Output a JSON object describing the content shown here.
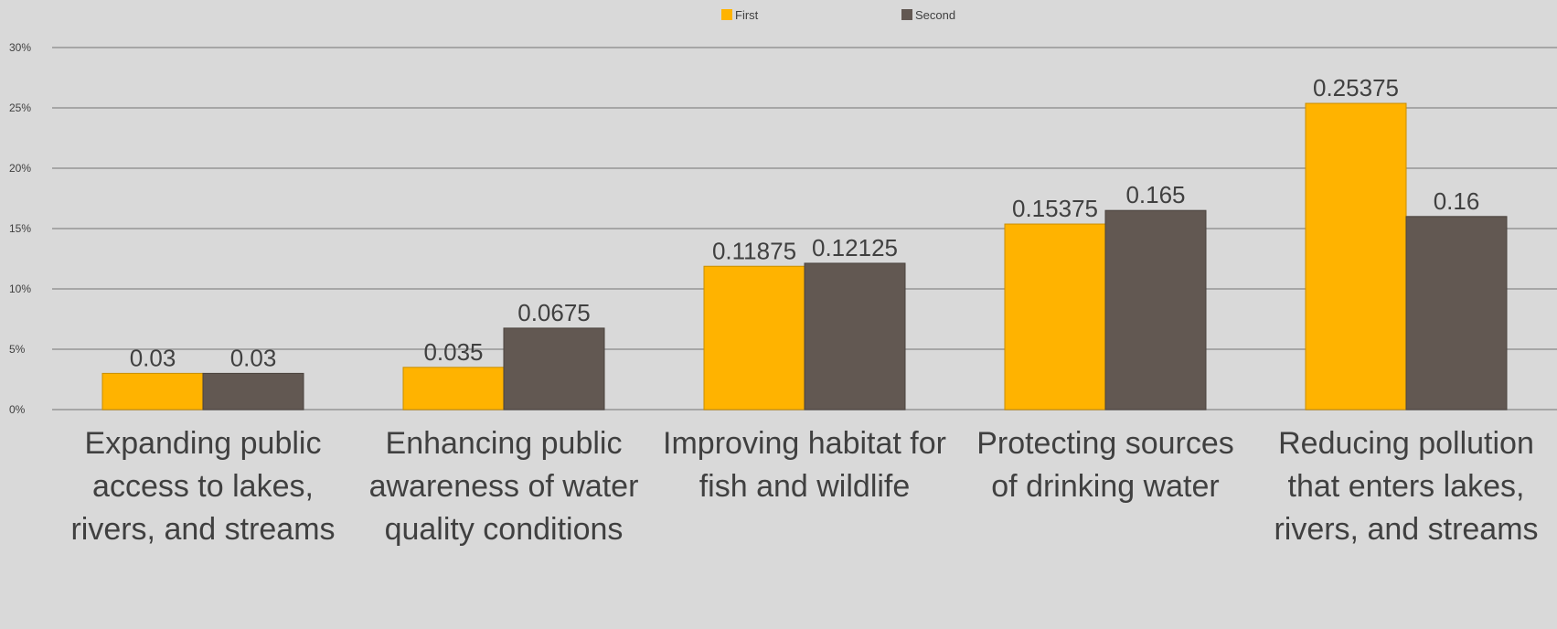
{
  "chart_data": {
    "type": "bar",
    "title": "",
    "xlabel": "",
    "ylabel": "",
    "ylim": [
      0,
      0.3
    ],
    "yticks": [
      {
        "value": 0,
        "label": "0%"
      },
      {
        "value": 0.05,
        "label": "5%"
      },
      {
        "value": 0.1,
        "label": "10%"
      },
      {
        "value": 0.15,
        "label": "15%"
      },
      {
        "value": 0.2,
        "label": "20%"
      },
      {
        "value": 0.25,
        "label": "25%"
      },
      {
        "value": 0.3,
        "label": "30%"
      }
    ],
    "grid": true,
    "legend_position": "top",
    "categories": [
      "Expanding public access to lakes, rivers, and streams",
      "Enhancing public awareness of water quality conditions",
      "Improving habitat for fish and wildlife",
      "Protecting sources of drinking water",
      "Reducing pollution that enters lakes, rivers, and streams"
    ],
    "series": [
      {
        "name": "First",
        "color": "#ffb300",
        "values": [
          0.03,
          0.035,
          0.11875,
          0.15375,
          0.25375
        ],
        "labels": [
          "0.03",
          "0.035",
          "0.11875",
          "0.15375",
          "0.25375"
        ]
      },
      {
        "name": "Second",
        "color": "#625852",
        "values": [
          0.03,
          0.0675,
          0.12125,
          0.165,
          0.16
        ],
        "labels": [
          "0.03",
          "0.0675",
          "0.12125",
          "0.165",
          "0.16"
        ]
      }
    ]
  }
}
